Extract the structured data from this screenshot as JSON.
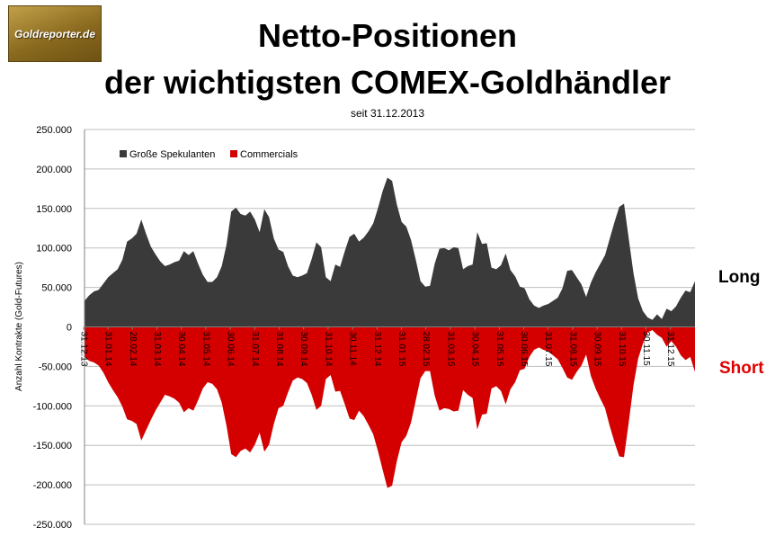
{
  "logo": {
    "text": "Goldreporter.de"
  },
  "side_labels": {
    "long": "Long",
    "short": "Short"
  },
  "colors": {
    "long_fill": "#3a3a3a",
    "short_fill": "#d40000",
    "short_label": "#e00000",
    "grid": "#bfbfbf",
    "logo_gold": "#a07d2e"
  },
  "chart_data": {
    "type": "area",
    "title": "Netto-Positionen der wichtigsten COMEX-Goldhändler",
    "title_lines": [
      "Netto-Positionen",
      "der wichtigsten COMEX-Goldhändler"
    ],
    "subtitle": "seit 31.12.2013",
    "xlabel": "",
    "ylabel": "Anzahl Kontrakte (Gold-Futures)",
    "ylim": [
      -250000,
      250000
    ],
    "yticks": [
      250000,
      200000,
      150000,
      100000,
      50000,
      0,
      -50000,
      -100000,
      -150000,
      -200000,
      -250000
    ],
    "ytick_labels": [
      "250.000",
      "200.000",
      "150.000",
      "100.000",
      "50.000",
      "0",
      "-50.000",
      "-100.000",
      "-150.000",
      "-200.000",
      "-250.000"
    ],
    "xtick_labels": [
      "31.12.13",
      "31.01.14",
      "28.02.14",
      "31.03.14",
      "30.04.14",
      "31.05.14",
      "30.06.14",
      "31.07.14",
      "31.08.14",
      "30.09.14",
      "31.10.14",
      "30.11.14",
      "31.12.14",
      "31.01.15",
      "28.02.15",
      "31.03.15",
      "30.04.15",
      "31.05.15",
      "30.06.15",
      "31.07.15",
      "31.08.15",
      "30.09.15",
      "31.10.15",
      "30.11.15",
      "31.12.15"
    ],
    "grid": true,
    "legend_position": "top-left",
    "series": [
      {
        "name": "Große Spekulanten",
        "color": "#3a3a3a",
        "values": [
          33000,
          40000,
          45000,
          47000,
          55000,
          63000,
          68000,
          73000,
          85000,
          108000,
          112000,
          118000,
          136000,
          118000,
          102000,
          92000,
          83000,
          77000,
          79000,
          82000,
          84000,
          96000,
          91000,
          96000,
          80000,
          66000,
          57000,
          57000,
          63000,
          77000,
          104000,
          146000,
          151000,
          143000,
          141000,
          146000,
          136000,
          120000,
          149000,
          139000,
          112000,
          98000,
          95000,
          77000,
          65000,
          63000,
          65000,
          68000,
          86000,
          107000,
          101000,
          63000,
          58000,
          79000,
          76000,
          96000,
          114000,
          118000,
          108000,
          113000,
          121000,
          131000,
          150000,
          172000,
          189000,
          185000,
          155000,
          133000,
          127000,
          110000,
          85000,
          58000,
          51000,
          52000,
          80000,
          99000,
          100000,
          97000,
          101000,
          100000,
          73000,
          77000,
          79000,
          120000,
          105000,
          106000,
          75000,
          73000,
          78000,
          93000,
          72000,
          64000,
          51000,
          49000,
          35000,
          27000,
          24000,
          27000,
          29000,
          33000,
          37000,
          49000,
          71000,
          72000,
          63000,
          54000,
          38000,
          56000,
          69000,
          80000,
          91000,
          112000,
          133000,
          152000,
          156000,
          112000,
          68000,
          36000,
          20000,
          12000,
          9000,
          16000,
          10000,
          23000,
          20000,
          26000,
          37000,
          46000,
          44000,
          58000
        ]
      },
      {
        "name": "Commercials",
        "color": "#d40000",
        "values": [
          -38000,
          -43000,
          -45000,
          -49000,
          -58000,
          -70000,
          -80000,
          -89000,
          -101000,
          -117000,
          -119000,
          -123000,
          -144000,
          -131000,
          -118000,
          -106000,
          -96000,
          -86000,
          -88000,
          -91000,
          -96000,
          -108000,
          -103000,
          -106000,
          -93000,
          -78000,
          -70000,
          -72000,
          -79000,
          -96000,
          -125000,
          -161000,
          -165000,
          -157000,
          -154000,
          -159000,
          -149000,
          -134000,
          -158000,
          -149000,
          -123000,
          -103000,
          -100000,
          -83000,
          -68000,
          -64000,
          -66000,
          -71000,
          -86000,
          -105000,
          -100000,
          -66000,
          -61000,
          -82000,
          -81000,
          -98000,
          -116000,
          -118000,
          -106000,
          -113000,
          -124000,
          -136000,
          -157000,
          -181000,
          -204000,
          -201000,
          -170000,
          -146000,
          -138000,
          -121000,
          -93000,
          -65000,
          -56000,
          -56000,
          -87000,
          -106000,
          -103000,
          -104000,
          -107000,
          -106000,
          -80000,
          -86000,
          -90000,
          -130000,
          -111000,
          -110000,
          -78000,
          -75000,
          -81000,
          -98000,
          -79000,
          -70000,
          -55000,
          -53000,
          -38000,
          -29000,
          -26000,
          -29000,
          -31000,
          -36000,
          -41000,
          -52000,
          -64000,
          -67000,
          -57000,
          -49000,
          -35000,
          -62000,
          -78000,
          -91000,
          -103000,
          -126000,
          -146000,
          -164000,
          -165000,
          -121000,
          -74000,
          -40000,
          -21000,
          -7000,
          -4000,
          -10000,
          -14000,
          -25000,
          -18000,
          -25000,
          -36000,
          -42000,
          -38000,
          -57000
        ]
      }
    ]
  }
}
